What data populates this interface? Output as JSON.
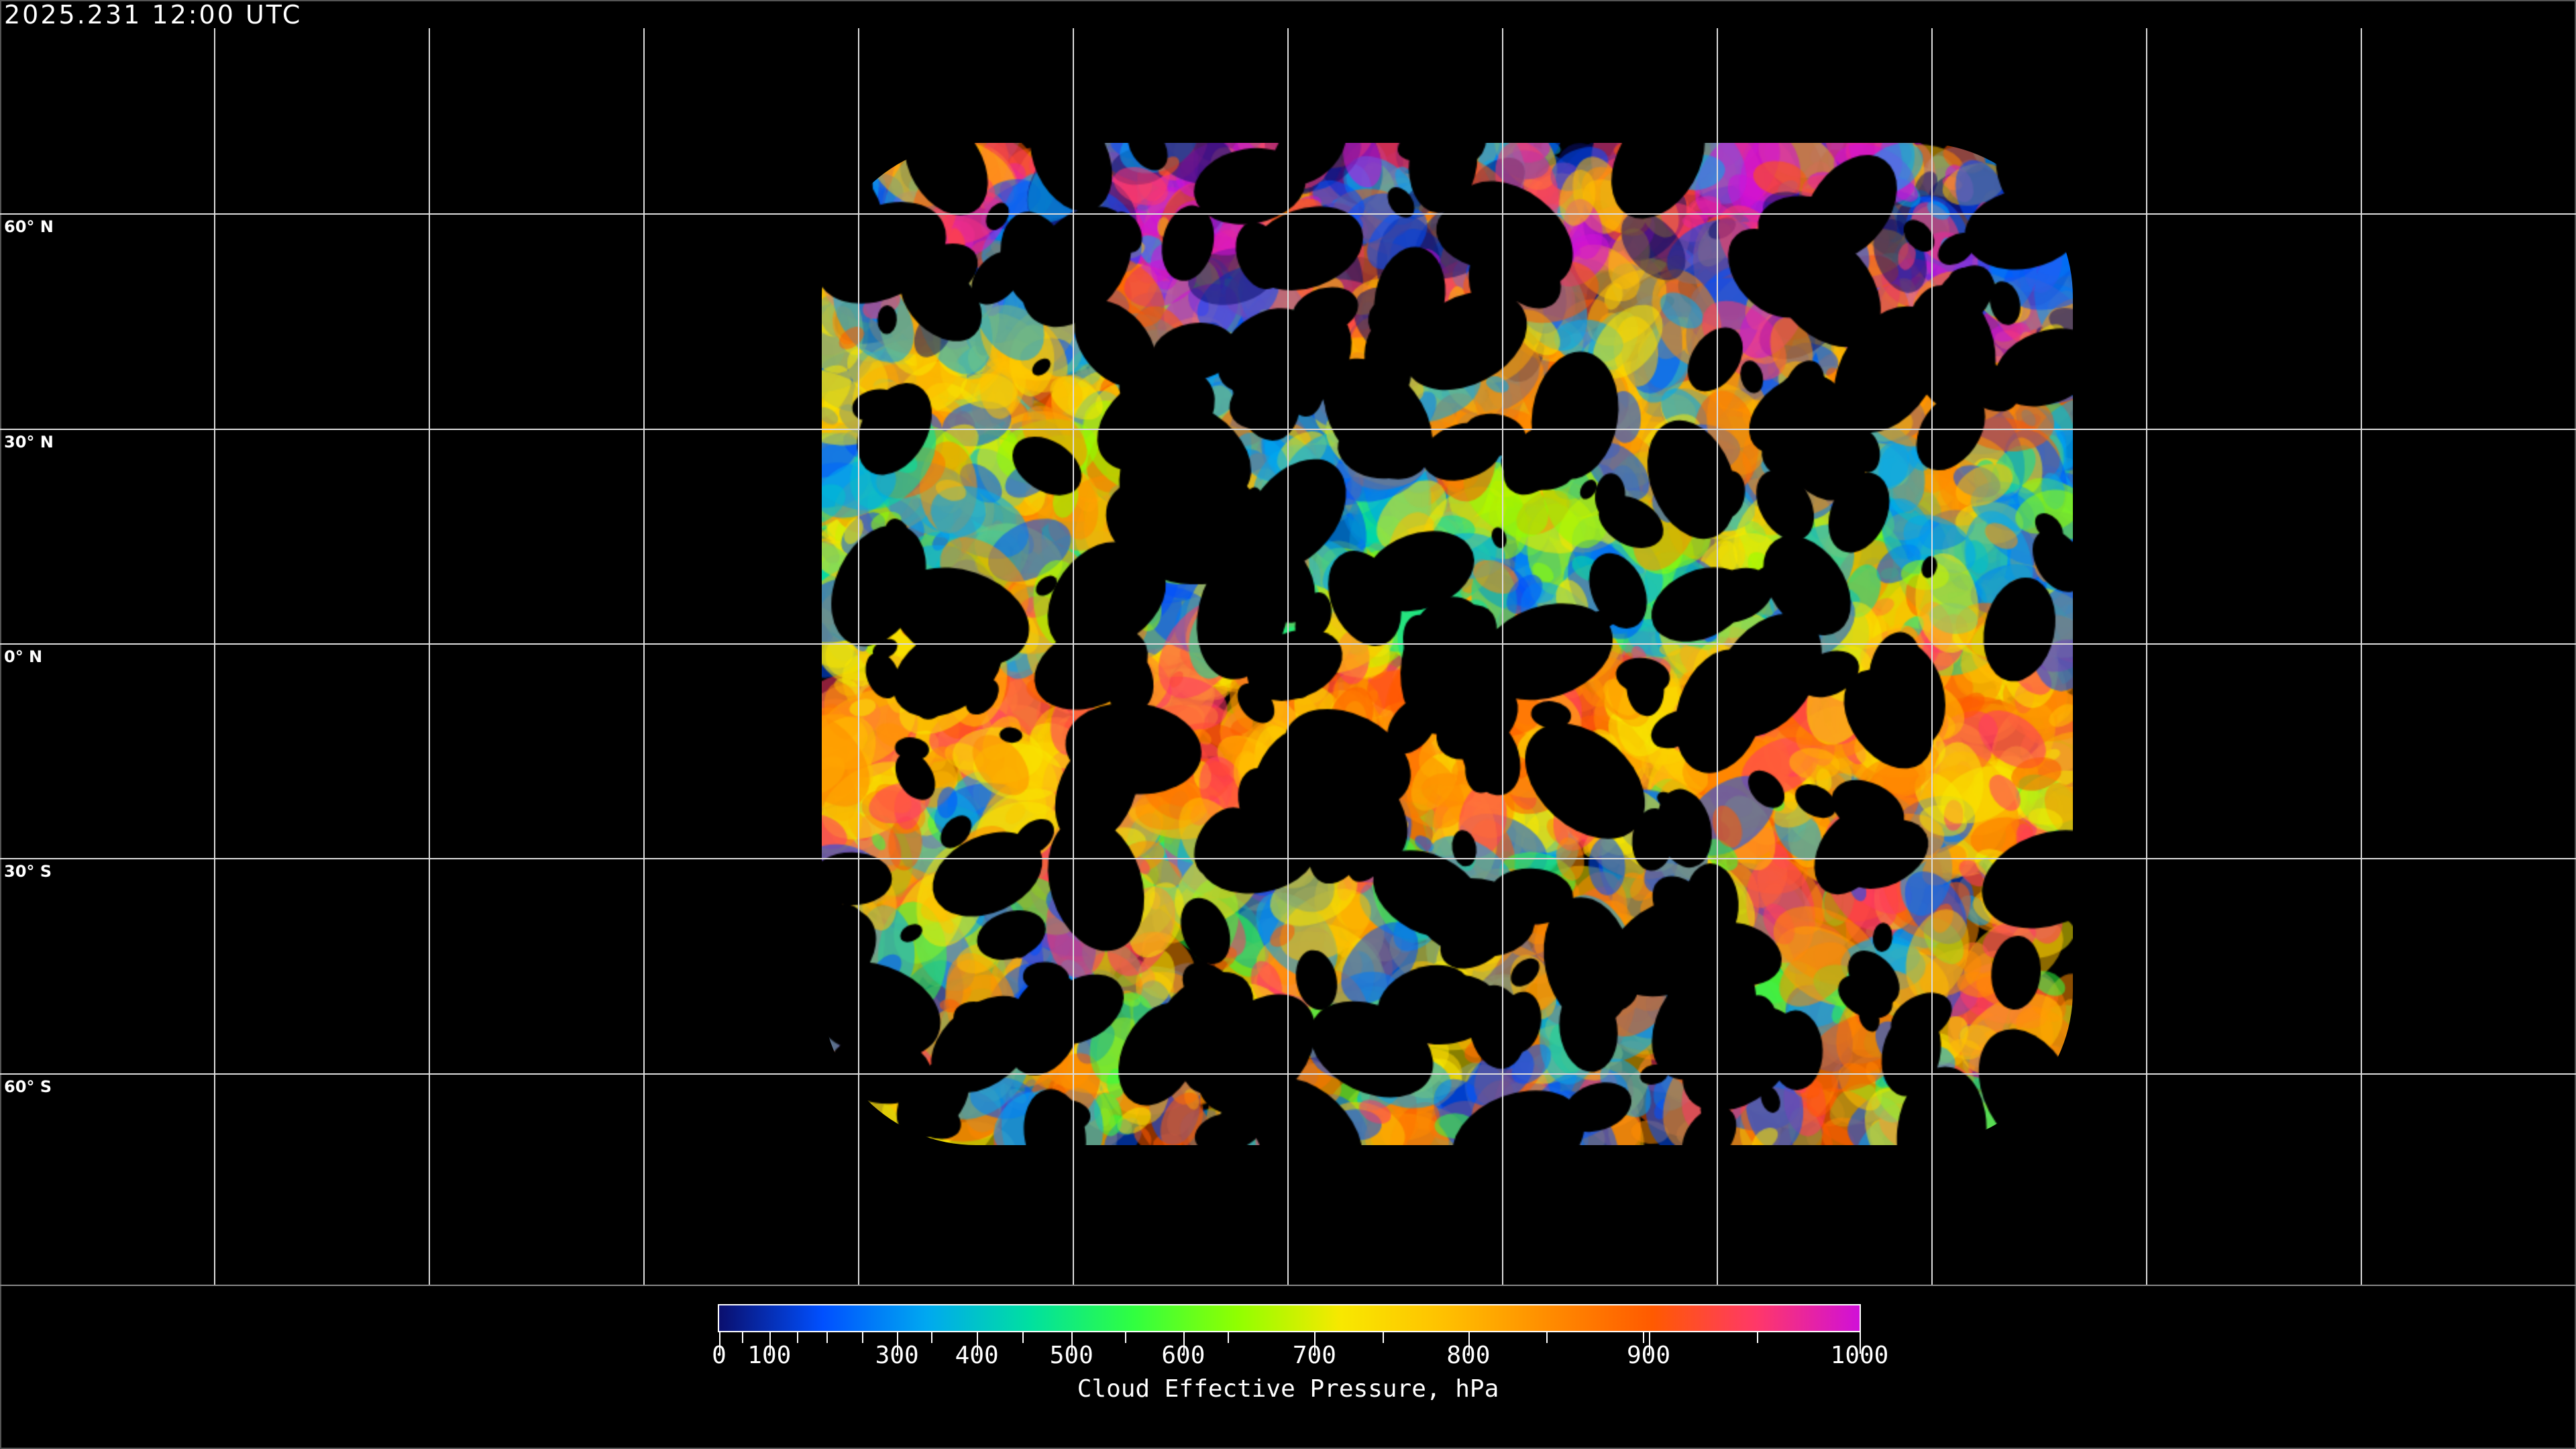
{
  "timestamp": "2025.231 12:00 UTC",
  "map": {
    "latitude_labels": [
      "60° N",
      "30° N",
      "0° N",
      "30° S",
      "60° S"
    ],
    "graticule_spacing_deg": 30,
    "background": "#000000",
    "grid_color": "#dddddd",
    "coastline_color": "#ffffff"
  },
  "colorbar": {
    "title": "Cloud Effective Pressure, hPa",
    "range": [
      0,
      1000
    ],
    "tick_labels": [
      "0",
      "100",
      "300",
      "400",
      "500",
      "600",
      "700",
      "800",
      "900",
      "1000"
    ],
    "colors": [
      "#0a0f6e",
      "#0050ff",
      "#00a8f0",
      "#00e0a0",
      "#30ff40",
      "#90ff00",
      "#f8e800",
      "#ffc000",
      "#ff8c00",
      "#ff5a00",
      "#ff3868",
      "#d010d8"
    ]
  }
}
